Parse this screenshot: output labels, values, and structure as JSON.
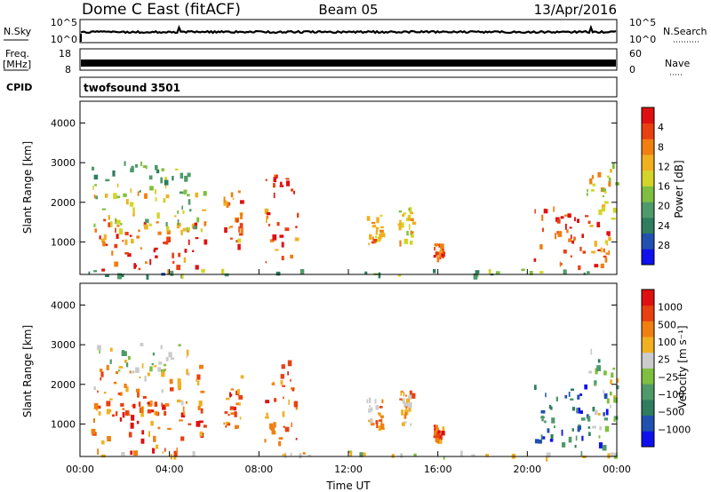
{
  "header": {
    "station": "Dome C East (fitACF)",
    "beam": "Beam 05",
    "date": "13/Apr/2016"
  },
  "top_panels": {
    "nsky_label": "N.Sky",
    "nsky_ticks": [
      "10^5",
      "10^0"
    ],
    "nsearch_label": "N.Search",
    "nsearch_ticks": [
      "10^5",
      "10^0"
    ],
    "freq_label": [
      "Freq.",
      "[MHz]"
    ],
    "freq_ticks": [
      "18",
      "8"
    ],
    "nave_label": "Nave",
    "nave_ticks": [
      "60",
      "0"
    ],
    "cpid_label": "CPID",
    "cpid_value": "twofsound 3501"
  },
  "chart_data": [
    {
      "type": "heatmap",
      "title": "",
      "xlabel": "Time UT",
      "ylabel": "Slant Range [km]",
      "x_ticks": [
        "00:00",
        "04:00",
        "08:00",
        "12:00",
        "16:00",
        "20:00",
        "00:00"
      ],
      "x_range_hours": [
        0,
        24
      ],
      "y_ticks": [
        1000,
        2000,
        3000,
        4000
      ],
      "ylim": [
        180,
        4550
      ],
      "colorbar": {
        "label": "Power [dB]",
        "tick_labels": [
          "4",
          "8",
          "12",
          "16",
          "20",
          "24",
          "28"
        ],
        "colors": [
          "#1010ee",
          "#2050b0",
          "#2e7d5e",
          "#4f9a6a",
          "#7fbf3f",
          "#d4d42a",
          "#f0b020",
          "#f07f10",
          "#e84010",
          "#e01010"
        ]
      },
      "scatter_regions": [
        {
          "t0": 0.5,
          "t1": 5.6,
          "r0": 300,
          "r1": 1600,
          "level": 0.85
        },
        {
          "t0": 0.5,
          "t1": 5.6,
          "r0": 1300,
          "r1": 2500,
          "level": 0.55
        },
        {
          "t0": 0.5,
          "t1": 4.8,
          "r0": 2300,
          "r1": 3050,
          "level": 0.4
        },
        {
          "t0": 6.4,
          "t1": 7.2,
          "r0": 900,
          "r1": 2300,
          "level": 0.75
        },
        {
          "t0": 8.2,
          "t1": 9.7,
          "r0": 500,
          "r1": 2800,
          "level": 0.8
        },
        {
          "t0": 12.8,
          "t1": 13.5,
          "r0": 900,
          "r1": 1700,
          "level": 0.7
        },
        {
          "t0": 14.2,
          "t1": 14.9,
          "r0": 1000,
          "r1": 1900,
          "level": 0.6
        },
        {
          "t0": 15.8,
          "t1": 16.2,
          "r0": 600,
          "r1": 1000,
          "level": 0.85
        },
        {
          "t0": 20.2,
          "t1": 23.6,
          "r0": 400,
          "r1": 2000,
          "level": 0.85
        },
        {
          "t0": 22.6,
          "t1": 24.0,
          "r0": 700,
          "r1": 3000,
          "level": 0.6
        },
        {
          "t0": 0.0,
          "t1": 24.0,
          "r0": 180,
          "r1": 330,
          "level": 0.35
        }
      ]
    },
    {
      "type": "heatmap",
      "title": "",
      "xlabel": "Time UT",
      "ylabel": "Slant Range [km]",
      "x_ticks": [
        "00:00",
        "04:00",
        "08:00",
        "12:00",
        "16:00",
        "20:00",
        "00:00"
      ],
      "x_range_hours": [
        0,
        24
      ],
      "y_ticks": [
        1000,
        2000,
        3000,
        4000
      ],
      "ylim": [
        180,
        4550
      ],
      "colorbar": {
        "label": "Velocity [m s⁻¹]",
        "tick_labels": [
          "1000",
          "500",
          "100",
          "25",
          "−25",
          "−100",
          "−500",
          "−1000"
        ],
        "colors": [
          "#1010ee",
          "#2050b0",
          "#2e7d5e",
          "#4f9a6a",
          "#7fbf3f",
          "#cccccc",
          "#f0b020",
          "#f07f10",
          "#e84010",
          "#e01010"
        ]
      },
      "scatter_regions": [
        {
          "t0": 0.5,
          "t1": 5.6,
          "r0": 300,
          "r1": 1600,
          "level": 0.8
        },
        {
          "t0": 0.5,
          "t1": 5.6,
          "r0": 1300,
          "r1": 2500,
          "level": 0.72
        },
        {
          "t0": 0.5,
          "t1": 4.8,
          "r0": 2300,
          "r1": 3050,
          "level": 0.5
        },
        {
          "t0": 6.4,
          "t1": 7.2,
          "r0": 900,
          "r1": 2300,
          "level": 0.78
        },
        {
          "t0": 8.2,
          "t1": 9.7,
          "r0": 500,
          "r1": 2800,
          "level": 0.78
        },
        {
          "t0": 12.8,
          "t1": 13.5,
          "r0": 900,
          "r1": 1700,
          "level": 0.7
        },
        {
          "t0": 14.2,
          "t1": 14.9,
          "r0": 1000,
          "r1": 1900,
          "level": 0.68
        },
        {
          "t0": 15.8,
          "t1": 16.2,
          "r0": 600,
          "r1": 1000,
          "level": 0.78
        },
        {
          "t0": 20.2,
          "t1": 23.6,
          "r0": 400,
          "r1": 2000,
          "level": 0.2
        },
        {
          "t0": 22.6,
          "t1": 24.0,
          "r0": 700,
          "r1": 3000,
          "level": 0.45
        },
        {
          "t0": 0.0,
          "t1": 24.0,
          "r0": 180,
          "r1": 330,
          "level": 0.55
        }
      ]
    }
  ]
}
